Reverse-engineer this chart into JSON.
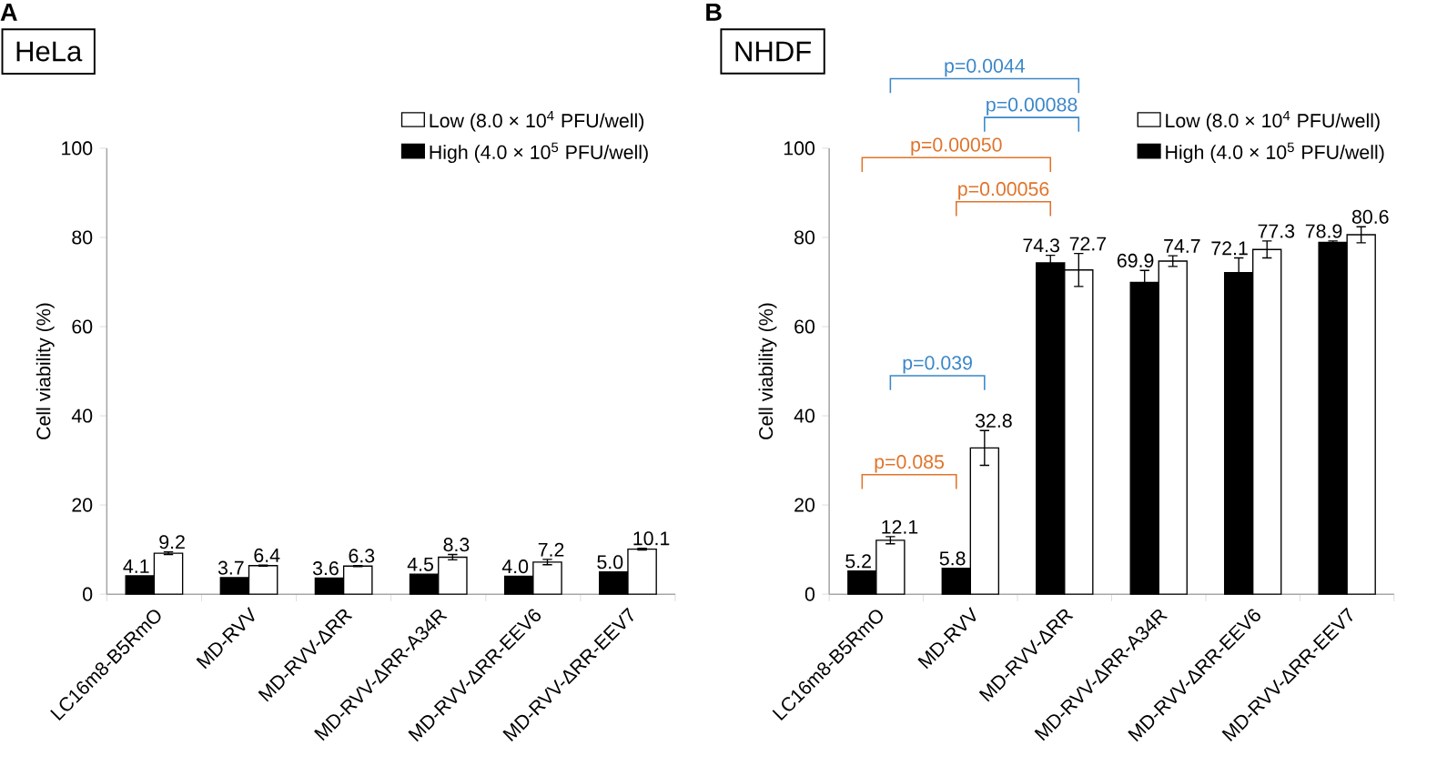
{
  "chart_data": [
    {
      "type": "bar",
      "title": "HeLa",
      "ylabel": "Cell viability (%)",
      "categories": [
        "LC16m8-B5RmO",
        "MD-RVV",
        "MD-RVV-ΔRR",
        "MD-RVV-ΔRR-A34R",
        "MD-RVV-ΔRR-EEV6",
        "MD-RVV-ΔRR-EEV7"
      ],
      "series": [
        {
          "name": "High (4.0 × 10$^{5}$ PFU/well)",
          "color": "#000000",
          "values": [
            4.1,
            3.7,
            3.6,
            4.5,
            4.0,
            5.0
          ],
          "errors": [
            null,
            null,
            null,
            null,
            null,
            null
          ],
          "value_labels": [
            "4.1",
            "3.7",
            "3.6",
            "4.5",
            "4.0",
            "5.0"
          ]
        },
        {
          "name": "Low (8.0 × 10$^{4}$ PFU/well)",
          "color": "#ffffff",
          "values": [
            9.2,
            6.4,
            6.3,
            8.3,
            7.2,
            10.1
          ],
          "errors": [
            0.3,
            0.1,
            0.1,
            0.6,
            0.6,
            0.2
          ],
          "value_labels": [
            "9.2",
            "6.4",
            "6.3",
            "8.3",
            "7.2",
            "10.1"
          ]
        }
      ],
      "ylim": [
        0,
        100
      ],
      "yticks": [
        0,
        20,
        40,
        60,
        80,
        100
      ],
      "legend": "top right",
      "annotations": [
        "A"
      ]
    },
    {
      "type": "bar",
      "title": "NHDF",
      "ylabel": "Cell viability (%)",
      "categories": [
        "LC16m8-B5RmO",
        "MD-RVV",
        "MD-RVV-ΔRR",
        "MD-RVV-ΔRR-A34R",
        "MD-RVV-ΔRR-EEV6",
        "MD-RVV-ΔRR-EEV7"
      ],
      "series": [
        {
          "name": "High (4.0 × 10$^{5}$ PFU/well)",
          "color": "#000000",
          "values": [
            5.2,
            5.8,
            74.3,
            69.9,
            72.1,
            78.9
          ],
          "errors": [
            null,
            null,
            1.7,
            2.7,
            3.3,
            0.3
          ],
          "value_labels": [
            "5.2",
            "5.8",
            "74.3",
            "69.9",
            "72.1",
            "78.9"
          ]
        },
        {
          "name": "Low (8.0 × 10$^{4}$ PFU/well)",
          "color": "#ffffff",
          "values": [
            12.1,
            32.8,
            72.7,
            74.7,
            77.3,
            80.6
          ],
          "errors": [
            0.8,
            3.9,
            3.7,
            1.2,
            1.9,
            1.8
          ],
          "value_labels": [
            "12.1",
            "32.8",
            "72.7",
            "74.7",
            "77.3",
            "80.6"
          ]
        }
      ],
      "ylim": [
        0,
        100
      ],
      "yticks": [
        0,
        20,
        40,
        60,
        80,
        100
      ],
      "legend": "top right",
      "annotations": [
        "B",
        "p=0.0044",
        "p=0.00088",
        "p=0.00050",
        "p=0.00056",
        "p=0.039",
        "p=0.085"
      ]
    }
  ]
}
